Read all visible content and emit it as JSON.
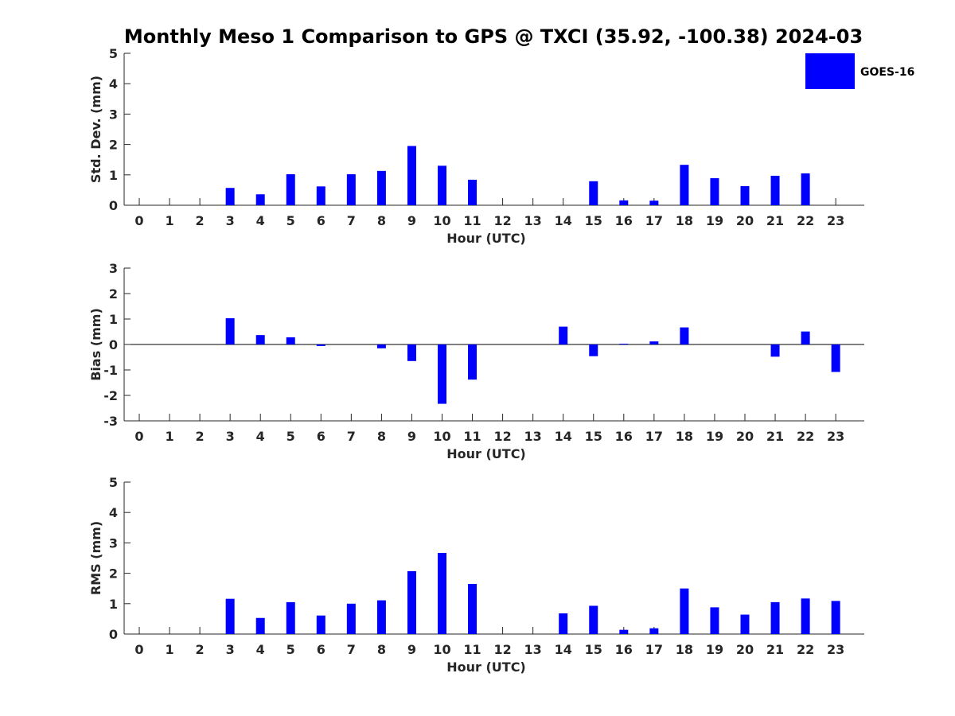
{
  "title": "Monthly Meso 1 Comparison to GPS @ TXCI (35.92, -100.38) 2024-03",
  "legend": {
    "label": "GOES-16",
    "color": "#0000ff",
    "position": "top-right"
  },
  "chart_data": [
    {
      "type": "bar",
      "xlabel": "Hour (UTC)",
      "ylabel": "Std. Dev. (mm)",
      "ylim": [
        0,
        5
      ],
      "yticks": [
        0,
        1,
        2,
        3,
        4,
        5
      ],
      "categories": [
        0,
        1,
        2,
        3,
        4,
        5,
        6,
        7,
        8,
        9,
        10,
        11,
        12,
        13,
        14,
        15,
        16,
        17,
        18,
        19,
        20,
        21,
        22,
        23
      ],
      "series": [
        {
          "name": "GOES-16",
          "values": [
            0,
            0,
            0,
            0.57,
            0.36,
            1.02,
            0.62,
            1.02,
            1.13,
            1.95,
            1.3,
            0.84,
            0,
            0,
            0,
            0.79,
            0.16,
            0.15,
            1.33,
            0.89,
            0.63,
            0.97,
            1.05,
            0
          ]
        }
      ],
      "grid": false
    },
    {
      "type": "bar",
      "xlabel": "Hour (UTC)",
      "ylabel": "Bias (mm)",
      "ylim": [
        -3,
        3
      ],
      "yticks": [
        -3,
        -2,
        -1,
        0,
        1,
        2,
        3
      ],
      "categories": [
        0,
        1,
        2,
        3,
        4,
        5,
        6,
        7,
        8,
        9,
        10,
        11,
        12,
        13,
        14,
        15,
        16,
        17,
        18,
        19,
        20,
        21,
        22,
        23
      ],
      "series": [
        {
          "name": "GOES-16",
          "values": [
            0,
            0,
            0,
            1.03,
            0.37,
            0.28,
            -0.06,
            0,
            -0.15,
            -0.65,
            -2.33,
            -1.38,
            0,
            0,
            0.7,
            -0.46,
            0.03,
            0.12,
            0.67,
            0,
            0,
            -0.48,
            0.51,
            -1.08
          ]
        }
      ],
      "grid": false
    },
    {
      "type": "bar",
      "xlabel": "Hour (UTC)",
      "ylabel": "RMS (mm)",
      "ylim": [
        0,
        5
      ],
      "yticks": [
        0,
        1,
        2,
        3,
        4,
        5
      ],
      "categories": [
        0,
        1,
        2,
        3,
        4,
        5,
        6,
        7,
        8,
        9,
        10,
        11,
        12,
        13,
        14,
        15,
        16,
        17,
        18,
        19,
        20,
        21,
        22,
        23
      ],
      "series": [
        {
          "name": "GOES-16",
          "values": [
            0,
            0,
            0,
            1.16,
            0.53,
            1.05,
            0.61,
            1.0,
            1.11,
            2.07,
            2.67,
            1.65,
            0,
            0,
            0.68,
            0.93,
            0.14,
            0.19,
            1.5,
            0.88,
            0.64,
            1.05,
            1.17,
            1.09
          ]
        }
      ],
      "grid": false
    }
  ]
}
